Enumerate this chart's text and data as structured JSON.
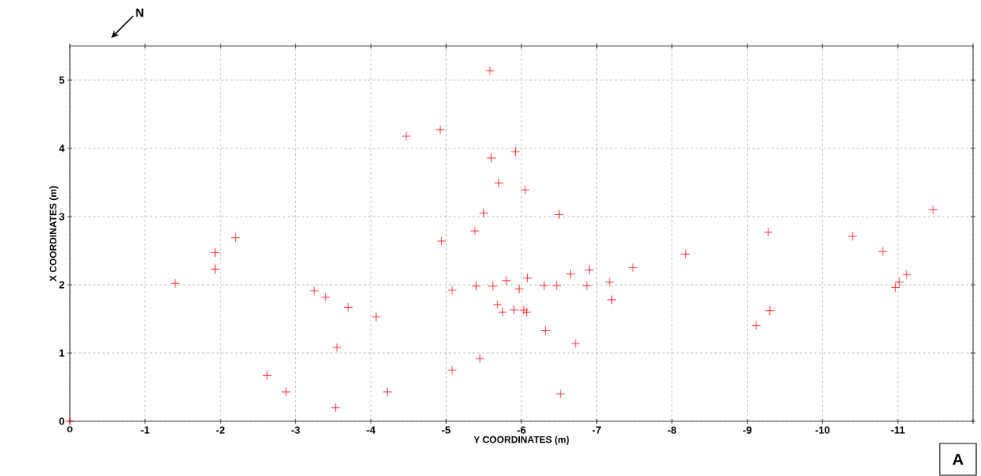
{
  "chart_data": {
    "type": "scatter",
    "xlabel": "Y COORDINATES (m)",
    "ylabel": "X COORDINATES (m)",
    "annotations": [
      "N",
      "A"
    ],
    "xlim": [
      0,
      -12
    ],
    "ylim": [
      0,
      5.5
    ],
    "xticks": [
      {
        "value": 0,
        "label": "o"
      },
      -1,
      -2,
      -3,
      -4,
      -5,
      -6,
      -7,
      -8,
      -9,
      -10,
      -11,
      {
        "value": -12,
        "label": null
      }
    ],
    "yticks": [
      0,
      1,
      2,
      3,
      4,
      5
    ],
    "grid": true,
    "marker": "cross",
    "series": [
      {
        "color": "#ff0000",
        "x": [
          0,
          -1.4,
          -1.93,
          -1.93,
          -2.2,
          -2.62,
          -2.87,
          -3.25,
          -3.4,
          -3.53,
          -3.55,
          -3.7,
          -4.07,
          -4.22,
          -4.47,
          -4.92,
          -4.94,
          -5.08,
          -5.08,
          -5.38,
          -5.4,
          -5.45,
          -5.5,
          -5.58,
          -5.6,
          -5.62,
          -5.68,
          -5.7,
          -5.75,
          -5.8,
          -5.9,
          -5.92,
          -5.97,
          -6.03,
          -6.05,
          -6.07,
          -6.08,
          -6.3,
          -6.32,
          -6.47,
          -6.5,
          -6.52,
          -6.65,
          -6.72,
          -6.87,
          -6.9,
          -7.17,
          -7.2,
          -7.48,
          -8.18,
          -9.12,
          -9.28,
          -9.3,
          -10.4,
          -10.8,
          -10.97,
          -11.02,
          -11.12,
          -11.47
        ],
        "values": [
          0,
          2.02,
          2.47,
          2.23,
          2.69,
          0.67,
          0.43,
          1.91,
          1.82,
          0.2,
          1.08,
          1.67,
          1.53,
          0.43,
          4.18,
          4.27,
          2.64,
          1.92,
          0.75,
          2.79,
          1.98,
          0.92,
          3.05,
          5.14,
          3.86,
          1.98,
          1.71,
          3.49,
          1.6,
          2.06,
          1.63,
          3.95,
          1.94,
          1.63,
          3.39,
          1.6,
          2.1,
          1.99,
          1.33,
          1.99,
          3.03,
          0.4,
          2.16,
          1.14,
          1.99,
          2.22,
          2.04,
          1.78,
          2.25,
          2.45,
          1.4,
          2.77,
          1.62,
          2.71,
          2.49,
          1.96,
          2.04,
          2.15,
          3.1
        ]
      }
    ]
  }
}
